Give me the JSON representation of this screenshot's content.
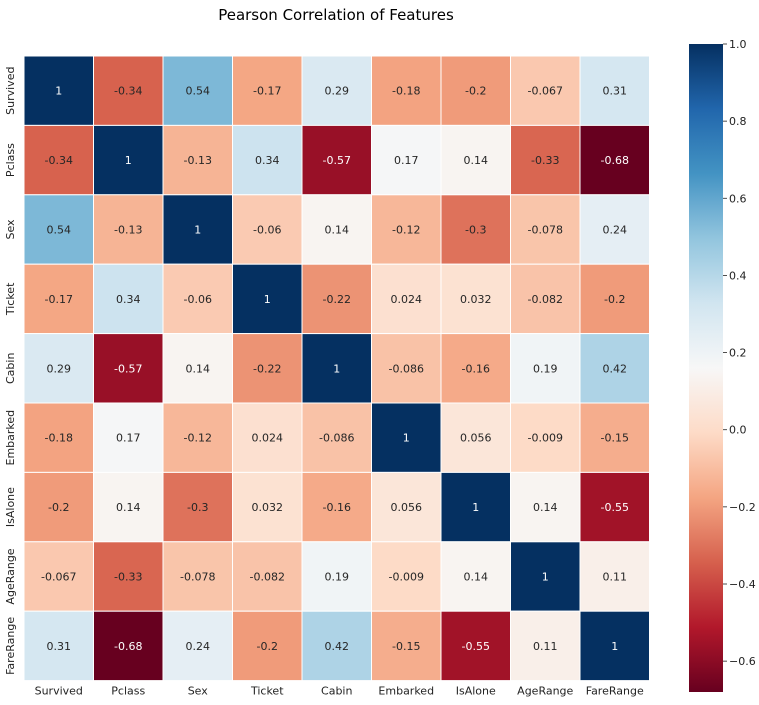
{
  "chart_data": {
    "type": "heatmap",
    "title": "Pearson Correlation of Features",
    "xlabel": "",
    "ylabel": "",
    "colormap": "RdBu",
    "vmin": -0.68,
    "vmax": 1.0,
    "grid": true,
    "legend": "colorbar-right",
    "categories": [
      "Survived",
      "Pclass",
      "Sex",
      "Ticket",
      "Cabin",
      "Embarked",
      "IsAlone",
      "AgeRange",
      "FareRange"
    ],
    "values": [
      [
        1,
        -0.34,
        0.54,
        -0.17,
        0.29,
        -0.18,
        -0.2,
        -0.067,
        0.31
      ],
      [
        -0.34,
        1,
        -0.13,
        0.34,
        -0.57,
        0.17,
        0.14,
        -0.33,
        -0.68
      ],
      [
        0.54,
        -0.13,
        1,
        -0.06,
        0.14,
        -0.12,
        -0.3,
        -0.078,
        0.24
      ],
      [
        -0.17,
        0.34,
        -0.06,
        1,
        -0.22,
        0.024,
        0.032,
        -0.082,
        -0.2
      ],
      [
        0.29,
        -0.57,
        0.14,
        -0.22,
        1,
        -0.086,
        -0.16,
        0.19,
        0.42
      ],
      [
        -0.18,
        0.17,
        -0.12,
        0.024,
        -0.086,
        1,
        0.056,
        -0.009,
        -0.15
      ],
      [
        -0.2,
        0.14,
        -0.3,
        0.032,
        -0.16,
        0.056,
        1,
        0.14,
        -0.55
      ],
      [
        -0.067,
        -0.33,
        -0.078,
        -0.082,
        0.19,
        -0.009,
        0.14,
        1,
        0.11
      ],
      [
        0.31,
        -0.68,
        0.24,
        -0.2,
        0.42,
        -0.15,
        -0.55,
        0.11,
        1
      ]
    ],
    "colorbar_ticks": [
      1.0,
      0.8,
      0.6,
      0.4,
      0.2,
      0.0,
      -0.2,
      -0.4,
      -0.6
    ],
    "colorbar_tick_labels": [
      "1.0",
      "0.8",
      "0.6",
      "0.4",
      "0.2",
      "0.0",
      "−0.2",
      "−0.4",
      "−0.6"
    ]
  }
}
